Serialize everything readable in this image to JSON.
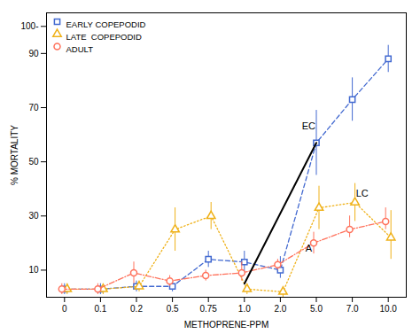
{
  "chart_data": {
    "type": "line",
    "xlabel": "METHOPRENE-PPM",
    "ylabel": "% MORTALITY",
    "categories": [
      "0",
      "0.1",
      "0.2",
      "0.5",
      "0.75",
      "1.0",
      "2.0",
      "5.0",
      "7.0",
      "10.0"
    ],
    "ylim": [
      0,
      105
    ],
    "yticks": [
      10,
      30,
      50,
      70,
      90,
      {
        "value": 100,
        "label": "100-"
      }
    ],
    "legend": "top-left",
    "series": [
      {
        "name": "EARLY COPEPODID",
        "marker": "square",
        "line_style": "dashed",
        "values": [
          3,
          3,
          4,
          4,
          14,
          13,
          10,
          57,
          73,
          88
        ],
        "error_low": [
          2,
          2,
          2,
          2,
          3,
          4,
          3,
          12,
          8,
          5
        ],
        "error_high": [
          2,
          2,
          2,
          2,
          3,
          4,
          5,
          12,
          8,
          5
        ]
      },
      {
        "name": "LATE  COPEPODID",
        "marker": "triangle",
        "line_style": "dotted",
        "values": [
          3,
          3,
          4,
          25,
          30,
          3,
          2,
          33,
          35,
          22
        ],
        "error_low": [
          2,
          2,
          2,
          8,
          5,
          2,
          2,
          8,
          7,
          8
        ],
        "error_high": [
          2,
          2,
          2,
          8,
          5,
          2,
          2,
          8,
          7,
          10
        ]
      },
      {
        "name": "ADULT",
        "marker": "circle",
        "line_style": "dashdot",
        "values": [
          3,
          3,
          9,
          6,
          8,
          9,
          12,
          20,
          25,
          28
        ],
        "error_low": [
          2,
          2,
          4,
          2,
          2,
          3,
          2,
          4,
          3,
          3
        ],
        "error_high": [
          2,
          2,
          4,
          2,
          2,
          4,
          2,
          4,
          5,
          5
        ]
      },
      {
        "type": "line",
        "line_style": "solid",
        "x": [
          "1.0",
          "5.0"
        ],
        "values": [
          5,
          57
        ]
      }
    ],
    "annotations": [
      {
        "text": "EC",
        "x": 6.6,
        "y": 62
      },
      {
        "text": "LC",
        "x": 8.1,
        "y": 37
      },
      {
        "text": "A",
        "x": 6.7,
        "y": 17
      }
    ]
  }
}
